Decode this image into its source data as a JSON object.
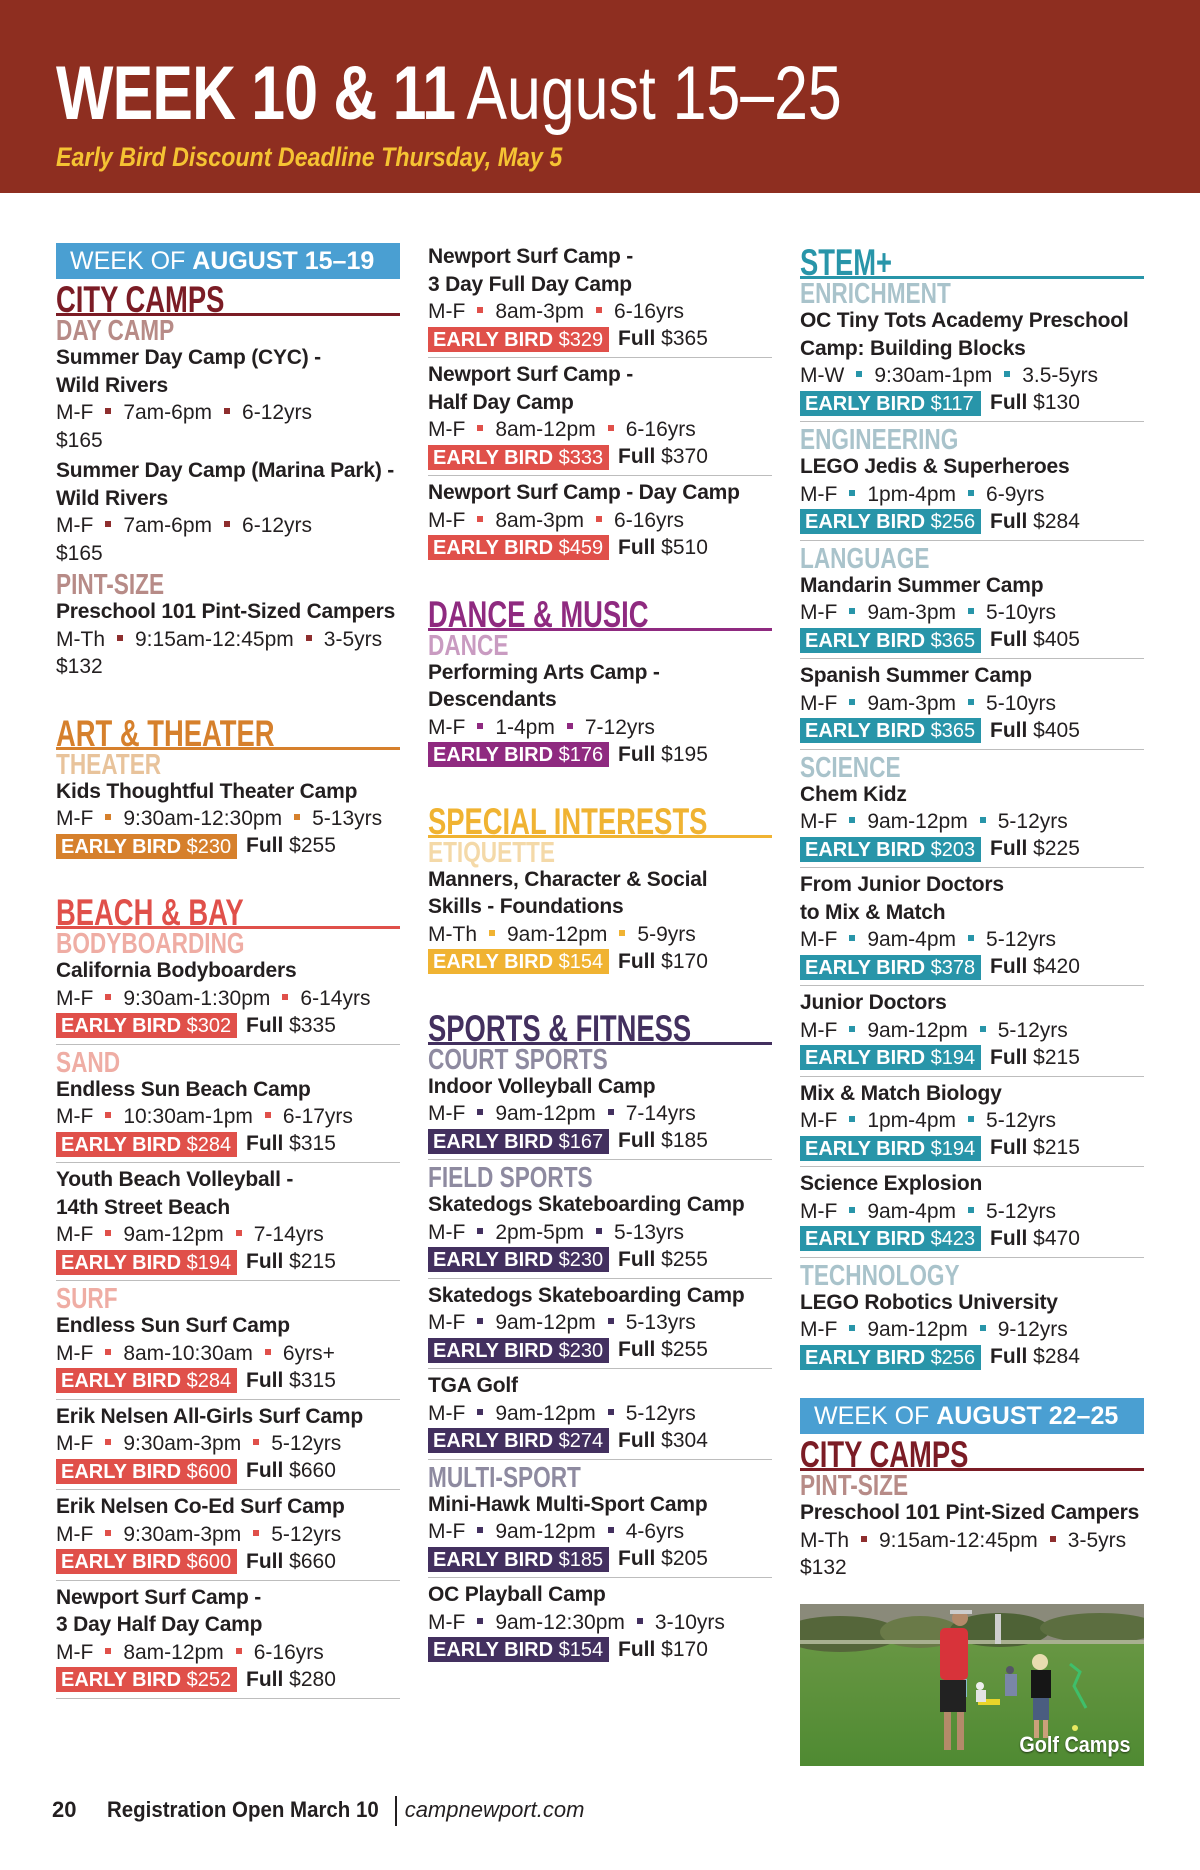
{
  "header": {
    "title_bold": "WEEK 10 & 11",
    "title_light": "August 15–25",
    "subtitle": "Early Bird Discount Deadline Thursday, May 5",
    "banner_color": "#8e2e20",
    "subtitle_color": "#f5c333"
  },
  "labels": {
    "early_bird": "EARLY BIRD",
    "full": "Full"
  },
  "themes": {
    "week": {
      "main": "#4a9fd2"
    },
    "city": {
      "main": "#7b1c25",
      "sub": "#b78b87",
      "bullet": "#8e2e2e",
      "badge": "#8e2e2e"
    },
    "art": {
      "main": "#d6802c",
      "sub": "#e8c39b",
      "bullet": "#d6802c",
      "badge": "#d6802c"
    },
    "beach": {
      "main": "#e0504a",
      "sub": "#efada4",
      "bullet": "#e0504a",
      "badge": "#e0504a"
    },
    "dance": {
      "main": "#8f2a80",
      "sub": "#c99bc1",
      "bullet": "#8f2a80",
      "badge": "#8f2a80"
    },
    "special": {
      "main": "#f0b332",
      "sub": "#f4d9a8",
      "bullet": "#f0b332",
      "badge": "#f0b332"
    },
    "sports": {
      "main": "#43305f",
      "sub": "#8e8aa0",
      "bullet": "#43305f",
      "badge": "#43305f"
    },
    "stem": {
      "main": "#2895a9",
      "sub": "#a9c3cb",
      "bullet": "#2895a9",
      "badge": "#2895a9"
    }
  },
  "columns": [
    {
      "blocks": [
        {
          "type": "week",
          "light": "WEEK OF ",
          "bold": "AUGUST 15–19"
        },
        {
          "type": "cat",
          "theme": "city",
          "title": "CITY CAMPS"
        },
        {
          "type": "sub",
          "theme": "city",
          "text": "DAY CAMP"
        },
        {
          "type": "camp",
          "theme": "city",
          "name": [
            "Summer Day Camp (CYC) -",
            "Wild Rivers"
          ],
          "days": "M-F",
          "time": "7am-6pm",
          "ages": "6-12yrs",
          "price": "$165"
        },
        {
          "type": "camp",
          "theme": "city",
          "name": [
            "Summer Day Camp (Marina Park) -",
            "Wild Rivers"
          ],
          "days": "M-F",
          "time": "7am-6pm",
          "ages": "6-12yrs",
          "price": "$165"
        },
        {
          "type": "sub",
          "theme": "city",
          "text": "PINT-SIZE"
        },
        {
          "type": "camp",
          "theme": "city",
          "name": [
            "Preschool 101 Pint-Sized Campers"
          ],
          "days": "M-Th",
          "time": "9:15am-12:45pm",
          "ages": "3-5yrs",
          "price": "$132"
        },
        {
          "type": "cat",
          "theme": "art",
          "title": "ART & THEATER"
        },
        {
          "type": "sub",
          "theme": "art",
          "text": "THEATER"
        },
        {
          "type": "camp",
          "theme": "art",
          "name": [
            "Kids Thoughtful Theater Camp"
          ],
          "days": "M-F",
          "time": "9:30am-12:30pm",
          "ages": "5-13yrs",
          "early": "$230",
          "full": "$255"
        },
        {
          "type": "cat",
          "theme": "beach",
          "title": "BEACH & BAY"
        },
        {
          "type": "sub",
          "theme": "beach",
          "text": "BODYBOARDING"
        },
        {
          "type": "camp",
          "theme": "beach",
          "name": [
            "California Bodyboarders"
          ],
          "days": "M-F",
          "time": "9:30am-1:30pm",
          "ages": "6-14yrs",
          "early": "$302",
          "full": "$335"
        },
        {
          "type": "sub",
          "theme": "beach",
          "text": "SAND"
        },
        {
          "type": "camp",
          "theme": "beach",
          "name": [
            "Endless Sun Beach Camp"
          ],
          "days": "M-F",
          "time": "10:30am-1pm",
          "ages": "6-17yrs",
          "early": "$284",
          "full": "$315"
        },
        {
          "type": "camp",
          "theme": "beach",
          "name": [
            "Youth Beach Volleyball -",
            "14th Street Beach"
          ],
          "days": "M-F",
          "time": "9am-12pm",
          "ages": "7-14yrs",
          "early": "$194",
          "full": "$215"
        },
        {
          "type": "sub",
          "theme": "beach",
          "text": "SURF"
        },
        {
          "type": "camp",
          "theme": "beach",
          "name": [
            "Endless Sun Surf Camp"
          ],
          "days": "M-F",
          "time": "8am-10:30am",
          "ages": "6yrs+",
          "early": "$284",
          "full": "$315"
        },
        {
          "type": "camp",
          "theme": "beach",
          "name": [
            "Erik Nelsen All-Girls Surf Camp"
          ],
          "days": "M-F",
          "time": "9:30am-3pm",
          "ages": "5-12yrs",
          "early": "$600",
          "full": "$660"
        },
        {
          "type": "camp",
          "theme": "beach",
          "name": [
            "Erik Nelsen Co-Ed Surf Camp"
          ],
          "days": "M-F",
          "time": "9:30am-3pm",
          "ages": "5-12yrs",
          "early": "$600",
          "full": "$660"
        },
        {
          "type": "camp",
          "theme": "beach",
          "name": [
            "Newport Surf Camp -",
            "3 Day Half Day Camp"
          ],
          "days": "M-F",
          "time": "8am-12pm",
          "ages": "6-16yrs",
          "early": "$252",
          "full": "$280",
          "sep": true
        }
      ]
    },
    {
      "blocks": [
        {
          "type": "camp",
          "theme": "beach",
          "name": [
            "Newport Surf Camp -",
            "3 Day Full Day Camp"
          ],
          "days": "M-F",
          "time": "8am-3pm",
          "ages": "6-16yrs",
          "early": "$329",
          "full": "$365"
        },
        {
          "type": "camp",
          "theme": "beach",
          "name": [
            "Newport Surf Camp -",
            "Half Day Camp"
          ],
          "days": "M-F",
          "time": "8am-12pm",
          "ages": "6-16yrs",
          "early": "$333",
          "full": "$370"
        },
        {
          "type": "camp",
          "theme": "beach",
          "name": [
            "Newport Surf Camp - Day Camp"
          ],
          "days": "M-F",
          "time": "8am-3pm",
          "ages": "6-16yrs",
          "early": "$459",
          "full": "$510"
        },
        {
          "type": "cat",
          "theme": "dance",
          "title": "DANCE & MUSIC"
        },
        {
          "type": "sub",
          "theme": "dance",
          "text": "DANCE"
        },
        {
          "type": "camp",
          "theme": "dance",
          "name": [
            "Performing Arts Camp -",
            "Descendants"
          ],
          "days": "M-F",
          "time": "1-4pm",
          "ages": "7-12yrs",
          "early": "$176",
          "full": "$195"
        },
        {
          "type": "cat",
          "theme": "special",
          "title": "SPECIAL INTERESTS"
        },
        {
          "type": "sub",
          "theme": "special",
          "text": "ETIQUETTE"
        },
        {
          "type": "camp",
          "theme": "special",
          "name": [
            "Manners, Character & Social",
            "Skills - Foundations"
          ],
          "days": "M-Th",
          "time": "9am-12pm",
          "ages": "5-9yrs",
          "early": "$154",
          "full": "$170"
        },
        {
          "type": "cat",
          "theme": "sports",
          "title": "SPORTS & FITNESS"
        },
        {
          "type": "sub",
          "theme": "sports",
          "text": "COURT SPORTS"
        },
        {
          "type": "camp",
          "theme": "sports",
          "name": [
            "Indoor Volleyball Camp"
          ],
          "days": "M-F",
          "time": "9am-12pm",
          "ages": "7-14yrs",
          "early": "$167",
          "full": "$185"
        },
        {
          "type": "sub",
          "theme": "sports",
          "text": "FIELD SPORTS"
        },
        {
          "type": "camp",
          "theme": "sports",
          "name": [
            "Skatedogs Skateboarding Camp"
          ],
          "days": "M-F",
          "time": "2pm-5pm",
          "ages": "5-13yrs",
          "early": "$230",
          "full": "$255"
        },
        {
          "type": "camp",
          "theme": "sports",
          "name": [
            "Skatedogs Skateboarding Camp"
          ],
          "days": "M-F",
          "time": "9am-12pm",
          "ages": "5-13yrs",
          "early": "$230",
          "full": "$255"
        },
        {
          "type": "camp",
          "theme": "sports",
          "name": [
            "TGA Golf"
          ],
          "days": "M-F",
          "time": "9am-12pm",
          "ages": "5-12yrs",
          "early": "$274",
          "full": "$304"
        },
        {
          "type": "sub",
          "theme": "sports",
          "text": "MULTI-SPORT"
        },
        {
          "type": "camp",
          "theme": "sports",
          "name": [
            "Mini-Hawk Multi-Sport Camp"
          ],
          "days": "M-F",
          "time": "9am-12pm",
          "ages": "4-6yrs",
          "early": "$185",
          "full": "$205"
        },
        {
          "type": "camp",
          "theme": "sports",
          "name": [
            "OC Playball Camp"
          ],
          "days": "M-F",
          "time": "9am-12:30pm",
          "ages": "3-10yrs",
          "early": "$154",
          "full": "$170"
        }
      ]
    },
    {
      "blocks": [
        {
          "type": "cat",
          "theme": "stem",
          "title": "STEM+"
        },
        {
          "type": "sub",
          "theme": "stem",
          "text": "ENRICHMENT"
        },
        {
          "type": "camp",
          "theme": "stem",
          "name": [
            "OC Tiny Tots Academy Preschool",
            "Camp: Building Blocks"
          ],
          "days": "M-W",
          "time": "9:30am-1pm",
          "ages": "3.5-5yrs",
          "early": "$117",
          "full": "$130"
        },
        {
          "type": "sub",
          "theme": "stem",
          "text": "ENGINEERING"
        },
        {
          "type": "camp",
          "theme": "stem",
          "name": [
            "LEGO Jedis & Superheroes"
          ],
          "days": "M-F",
          "time": "1pm-4pm",
          "ages": "6-9yrs",
          "early": "$256",
          "full": "$284"
        },
        {
          "type": "sub",
          "theme": "stem",
          "text": "LANGUAGE"
        },
        {
          "type": "camp",
          "theme": "stem",
          "name": [
            "Mandarin Summer Camp"
          ],
          "days": "M-F",
          "time": "9am-3pm",
          "ages": "5-10yrs",
          "early": "$365",
          "full": "$405"
        },
        {
          "type": "camp",
          "theme": "stem",
          "name": [
            "Spanish Summer Camp"
          ],
          "days": "M-F",
          "time": "9am-3pm",
          "ages": "5-10yrs",
          "early": "$365",
          "full": "$405"
        },
        {
          "type": "sub",
          "theme": "stem",
          "text": "SCIENCE"
        },
        {
          "type": "camp",
          "theme": "stem",
          "name": [
            "Chem Kidz"
          ],
          "days": "M-F",
          "time": "9am-12pm",
          "ages": "5-12yrs",
          "early": "$203",
          "full": "$225"
        },
        {
          "type": "camp",
          "theme": "stem",
          "name": [
            "From Junior Doctors",
            "to Mix & Match"
          ],
          "days": "M-F",
          "time": "9am-4pm",
          "ages": "5-12yrs",
          "early": "$378",
          "full": "$420"
        },
        {
          "type": "camp",
          "theme": "stem",
          "name": [
            "Junior Doctors"
          ],
          "days": "M-F",
          "time": "9am-12pm",
          "ages": "5-12yrs",
          "early": "$194",
          "full": "$215"
        },
        {
          "type": "camp",
          "theme": "stem",
          "name": [
            "Mix & Match Biology"
          ],
          "days": "M-F",
          "time": "1pm-4pm",
          "ages": "5-12yrs",
          "early": "$194",
          "full": "$215"
        },
        {
          "type": "camp",
          "theme": "stem",
          "name": [
            "Science Explosion"
          ],
          "days": "M-F",
          "time": "9am-4pm",
          "ages": "5-12yrs",
          "early": "$423",
          "full": "$470"
        },
        {
          "type": "sub",
          "theme": "stem",
          "text": "TECHNOLOGY"
        },
        {
          "type": "camp",
          "theme": "stem",
          "name": [
            "LEGO Robotics University"
          ],
          "days": "M-F",
          "time": "9am-12pm",
          "ages": "9-12yrs",
          "early": "$256",
          "full": "$284"
        },
        {
          "type": "week",
          "light": "WEEK OF ",
          "bold": "AUGUST 22–25",
          "spaced": true
        },
        {
          "type": "cat",
          "theme": "city",
          "title": "CITY CAMPS"
        },
        {
          "type": "sub",
          "theme": "city",
          "text": "PINT-SIZE"
        },
        {
          "type": "camp",
          "theme": "city",
          "name": [
            "Preschool 101 Pint-Sized Campers"
          ],
          "days": "M-Th",
          "time": "9:15am-12:45pm",
          "ages": "3-5yrs",
          "price": "$132"
        },
        {
          "type": "photo",
          "caption": "Golf Camps"
        }
      ]
    }
  ],
  "footer": {
    "page_number": "20",
    "registration": "Registration Open March 10",
    "website": "campnewport.com"
  }
}
